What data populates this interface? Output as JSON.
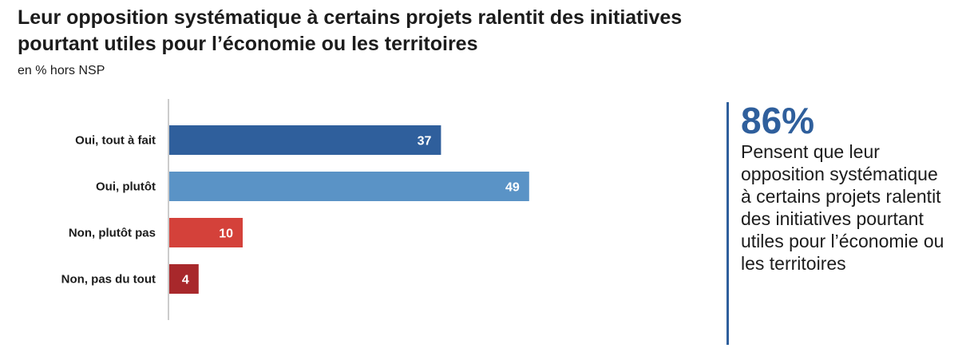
{
  "title": "Leur opposition systématique à certains projets ralentit des initiatives pourtant utiles pour l’économie ou les territoires",
  "subtitle": "en % hors NSP",
  "chart_data": {
    "type": "bar",
    "orientation": "horizontal",
    "title": "Leur opposition systématique à certains projets ralentit des initiatives pourtant utiles pour l’économie ou les territoires",
    "subtitle": "en % hors NSP",
    "categories": [
      "Oui, tout à fait",
      "Oui, plutôt",
      "Non, plutôt pas",
      "Non, pas du tout"
    ],
    "values": [
      37,
      49,
      10,
      4
    ],
    "colors": [
      "#2f5f9c",
      "#5a93c6",
      "#d4413a",
      "#a8282b"
    ],
    "xlim": [
      0,
      100
    ],
    "grid": false,
    "legend": "none"
  },
  "callout": {
    "value": "86%",
    "text": "Pensent que leur opposition systématique à certains projets ralentit des initiatives pourtant utiles pour l’économie ou les territoires"
  },
  "colors": {
    "accent": "#2f5f9c"
  }
}
